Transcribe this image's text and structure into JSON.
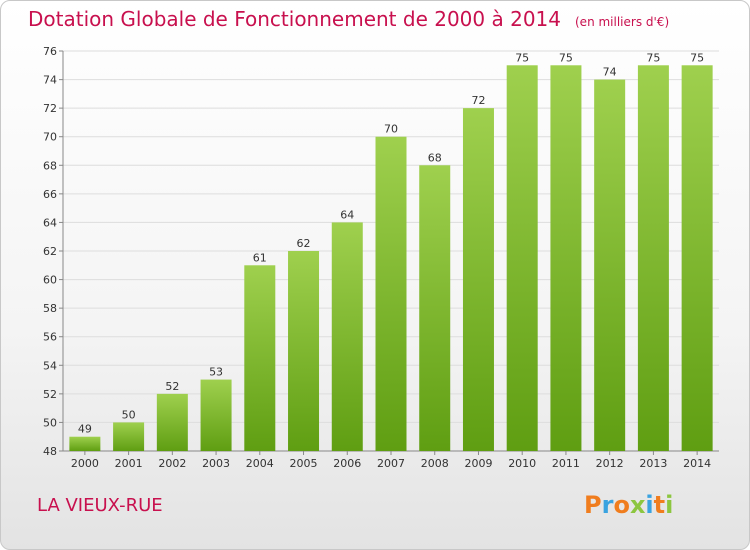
{
  "title": "Dotation Globale de Fonctionnement de 2000 à 2014",
  "unit_note": "(en milliers d'€)",
  "place_name": "LA VIEUX-RUE",
  "logo": {
    "letters": [
      "P",
      "r",
      "o",
      "x",
      "i",
      "t",
      "i"
    ],
    "colors": [
      "#f07d1e",
      "#3aa3e0",
      "#f07d1e",
      "#8cc63f",
      "#3aa3e0",
      "#f07d1e",
      "#8cc63f"
    ]
  },
  "colors": {
    "title": "#c8104e",
    "bar_top": "#9fd04e",
    "bar_bottom": "#5f9e12",
    "grid": "#dddddd"
  },
  "chart_data": {
    "type": "bar",
    "title": "Dotation Globale de Fonctionnement de 2000 à 2014",
    "subtitle": "(en milliers d'€)",
    "categories": [
      "2000",
      "2001",
      "2002",
      "2003",
      "2004",
      "2005",
      "2006",
      "2007",
      "2008",
      "2009",
      "2010",
      "2011",
      "2012",
      "2013",
      "2014"
    ],
    "values": [
      49,
      50,
      52,
      53,
      61,
      62,
      64,
      70,
      68,
      72,
      75,
      75,
      74,
      75,
      75
    ],
    "ylim": [
      48,
      76
    ],
    "yticks": [
      48,
      50,
      52,
      54,
      56,
      58,
      60,
      62,
      64,
      66,
      68,
      70,
      72,
      74,
      76
    ],
    "xlabel": "",
    "ylabel": "",
    "grid": true
  }
}
